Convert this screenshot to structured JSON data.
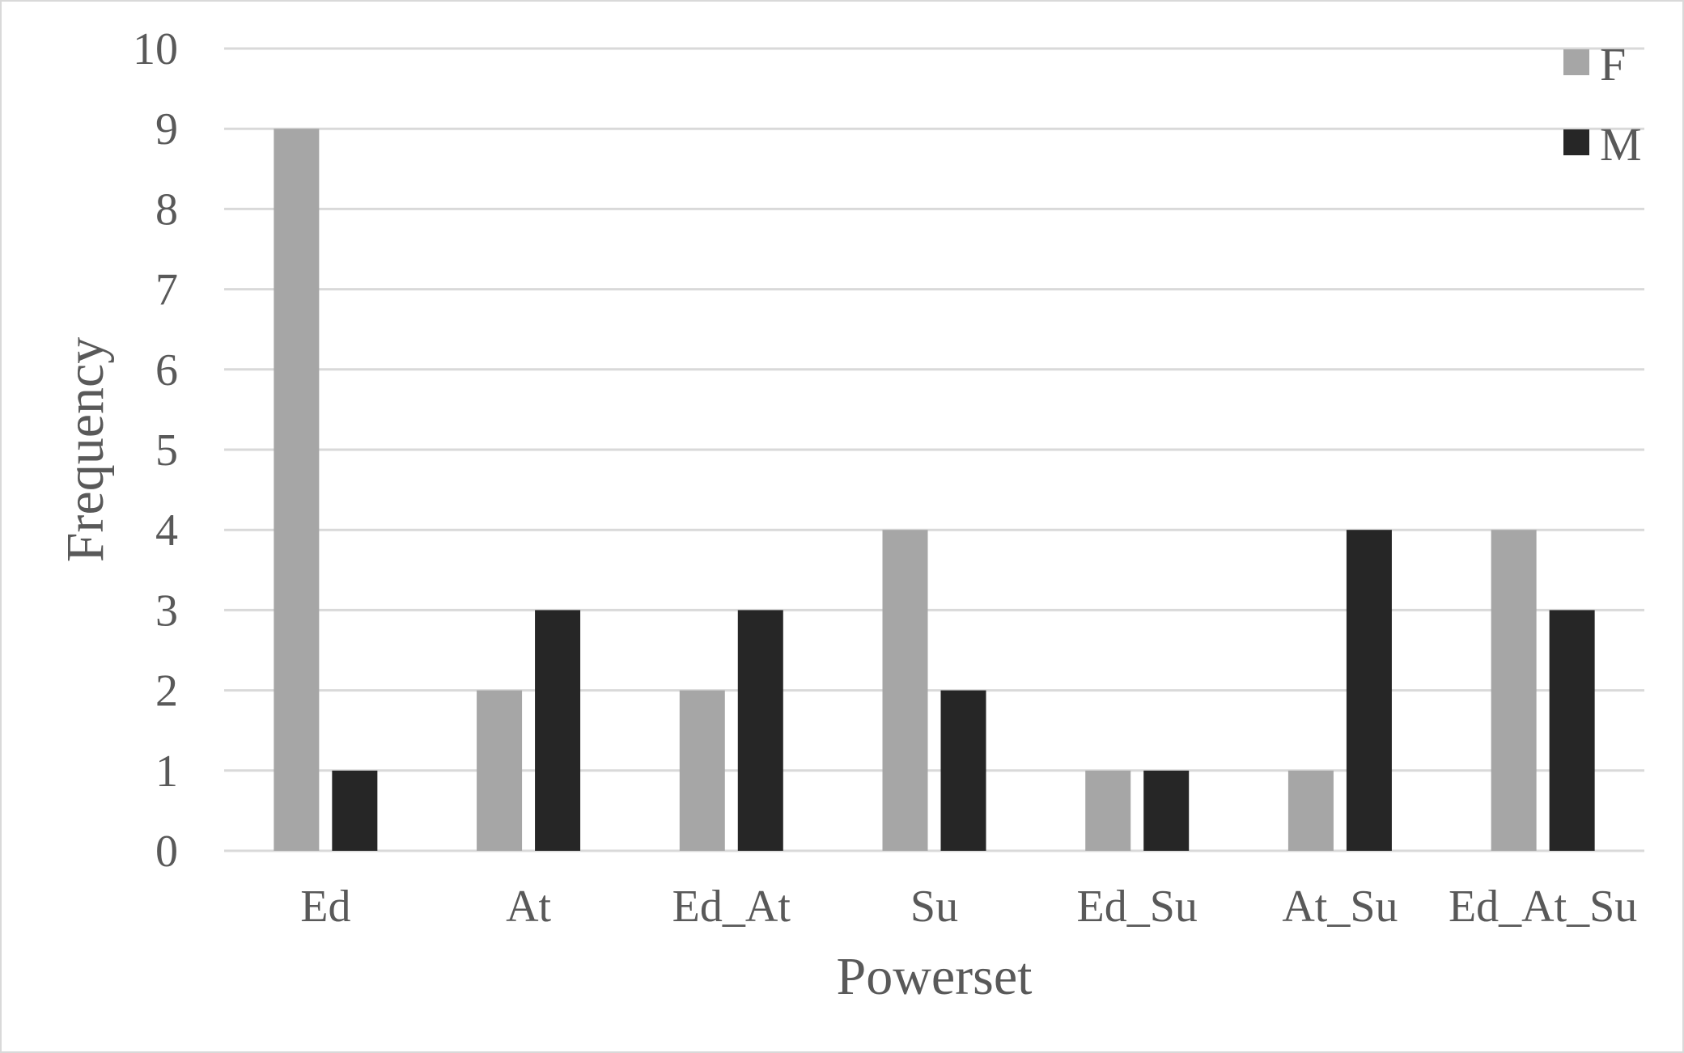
{
  "chart_data": {
    "type": "bar",
    "xlabel": "Powerset",
    "ylabel": "Frequency",
    "categories": [
      "Ed",
      "At",
      "Ed_At",
      "Su",
      "Ed_Su",
      "At_Su",
      "Ed_At_Su"
    ],
    "series": [
      {
        "name": "F",
        "values": [
          9,
          2,
          2,
          4,
          1,
          1,
          4
        ],
        "color": "#a6a6a6"
      },
      {
        "name": "M",
        "values": [
          1,
          3,
          3,
          2,
          1,
          4,
          3
        ],
        "color": "#262626"
      }
    ],
    "ylim": [
      0,
      10
    ],
    "yticks": [
      0,
      1,
      2,
      3,
      4,
      5,
      6,
      7,
      8,
      9,
      10
    ],
    "grid": true,
    "legend_position": "top-right"
  }
}
